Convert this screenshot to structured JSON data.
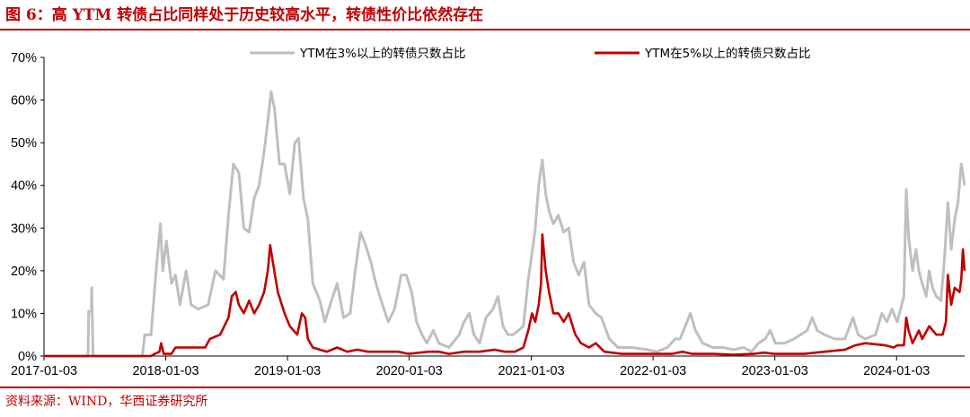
{
  "header": {
    "title": "图 6：高 YTM 转债占比同样处于历史较高水平，转债性价比依然存在"
  },
  "footer": {
    "source": "资料来源：WIND，华西证券研究所"
  },
  "colors": {
    "accent": "#c00000",
    "series_ytm3": "#bfbfbf",
    "series_ytm5": "#c00000"
  },
  "chart_data": {
    "type": "line",
    "xlabel": "",
    "ylabel": "",
    "ylim": [
      0,
      70
    ],
    "xlim": [
      "2017-01-03",
      "2024-07-25"
    ],
    "grid": false,
    "legend": "top",
    "y_ticks": [
      "0%",
      "10%",
      "20%",
      "30%",
      "40%",
      "50%",
      "60%",
      "70%"
    ],
    "x_ticks": [
      "2017-01-03",
      "2018-01-03",
      "2019-01-03",
      "2020-01-03",
      "2021-01-03",
      "2022-01-03",
      "2023-01-03",
      "2024-01-03"
    ],
    "series": [
      {
        "name": "YTM在3%以上的转债只数占比",
        "color": "#bfbfbf",
        "points": [
          [
            "2017-01-03",
            0
          ],
          [
            "2017-05-15",
            0
          ],
          [
            "2017-05-17",
            10.5
          ],
          [
            "2017-05-25",
            10.5
          ],
          [
            "2017-05-26",
            16
          ],
          [
            "2017-05-30",
            0
          ],
          [
            "2017-10-25",
            0
          ],
          [
            "2017-11-01",
            5
          ],
          [
            "2017-11-20",
            5
          ],
          [
            "2017-12-05",
            20
          ],
          [
            "2017-12-18",
            31
          ],
          [
            "2017-12-25",
            20
          ],
          [
            "2018-01-05",
            27
          ],
          [
            "2018-01-20",
            17
          ],
          [
            "2018-02-01",
            19
          ],
          [
            "2018-02-15",
            12
          ],
          [
            "2018-03-05",
            20
          ],
          [
            "2018-03-20",
            12
          ],
          [
            "2018-04-10",
            11
          ],
          [
            "2018-05-10",
            12
          ],
          [
            "2018-06-01",
            20
          ],
          [
            "2018-06-25",
            18
          ],
          [
            "2018-07-10",
            33
          ],
          [
            "2018-07-25",
            45
          ],
          [
            "2018-08-10",
            43
          ],
          [
            "2018-08-25",
            30
          ],
          [
            "2018-09-10",
            29
          ],
          [
            "2018-09-25",
            37
          ],
          [
            "2018-10-10",
            40
          ],
          [
            "2018-10-25",
            48
          ],
          [
            "2018-11-05",
            55
          ],
          [
            "2018-11-15",
            62
          ],
          [
            "2018-11-25",
            58
          ],
          [
            "2018-12-10",
            45
          ],
          [
            "2018-12-25",
            45
          ],
          [
            "2019-01-10",
            38
          ],
          [
            "2019-01-25",
            50
          ],
          [
            "2019-02-05",
            51
          ],
          [
            "2019-02-20",
            37
          ],
          [
            "2019-03-05",
            32
          ],
          [
            "2019-03-20",
            17
          ],
          [
            "2019-04-10",
            13
          ],
          [
            "2019-04-25",
            8
          ],
          [
            "2019-05-15",
            13
          ],
          [
            "2019-06-01",
            17
          ],
          [
            "2019-06-20",
            9
          ],
          [
            "2019-07-10",
            10
          ],
          [
            "2019-07-25",
            20
          ],
          [
            "2019-08-10",
            29
          ],
          [
            "2019-08-25",
            26
          ],
          [
            "2019-09-10",
            22
          ],
          [
            "2019-09-25",
            17
          ],
          [
            "2019-10-15",
            12
          ],
          [
            "2019-11-01",
            8
          ],
          [
            "2019-11-20",
            11
          ],
          [
            "2019-12-10",
            19
          ],
          [
            "2019-12-25",
            19
          ],
          [
            "2020-01-10",
            15
          ],
          [
            "2020-01-25",
            8
          ],
          [
            "2020-02-10",
            5
          ],
          [
            "2020-02-25",
            3
          ],
          [
            "2020-03-15",
            6
          ],
          [
            "2020-04-01",
            3
          ],
          [
            "2020-05-01",
            2
          ],
          [
            "2020-06-01",
            5
          ],
          [
            "2020-06-15",
            8
          ],
          [
            "2020-07-01",
            10
          ],
          [
            "2020-07-15",
            5
          ],
          [
            "2020-08-01",
            3
          ],
          [
            "2020-08-20",
            9
          ],
          [
            "2020-09-10",
            11
          ],
          [
            "2020-09-25",
            14
          ],
          [
            "2020-10-10",
            7
          ],
          [
            "2020-10-25",
            5
          ],
          [
            "2020-11-10",
            5
          ],
          [
            "2020-11-25",
            6
          ],
          [
            "2020-12-10",
            7
          ],
          [
            "2020-12-25",
            18
          ],
          [
            "2021-01-05",
            24
          ],
          [
            "2021-01-15",
            30
          ],
          [
            "2021-01-25",
            40
          ],
          [
            "2021-02-05",
            46
          ],
          [
            "2021-02-15",
            38
          ],
          [
            "2021-02-25",
            34
          ],
          [
            "2021-03-10",
            31
          ],
          [
            "2021-03-25",
            33
          ],
          [
            "2021-04-10",
            29
          ],
          [
            "2021-04-25",
            30
          ],
          [
            "2021-05-10",
            22
          ],
          [
            "2021-05-25",
            19
          ],
          [
            "2021-06-10",
            22
          ],
          [
            "2021-06-25",
            12
          ],
          [
            "2021-07-15",
            10
          ],
          [
            "2021-08-01",
            9
          ],
          [
            "2021-08-25",
            4
          ],
          [
            "2021-09-20",
            2
          ],
          [
            "2021-11-01",
            2
          ],
          [
            "2021-12-15",
            1.5
          ],
          [
            "2022-01-15",
            1
          ],
          [
            "2022-02-15",
            2
          ],
          [
            "2022-03-10",
            4
          ],
          [
            "2022-03-25",
            4
          ],
          [
            "2022-04-15",
            8
          ],
          [
            "2022-04-25",
            10
          ],
          [
            "2022-05-10",
            6
          ],
          [
            "2022-06-01",
            3
          ],
          [
            "2022-07-01",
            2
          ],
          [
            "2022-08-01",
            2
          ],
          [
            "2022-09-01",
            1.5
          ],
          [
            "2022-10-01",
            2
          ],
          [
            "2022-10-25",
            1
          ],
          [
            "2022-11-15",
            3
          ],
          [
            "2022-12-05",
            4
          ],
          [
            "2022-12-20",
            6
          ],
          [
            "2023-01-05",
            3
          ],
          [
            "2023-02-01",
            3
          ],
          [
            "2023-03-01",
            4
          ],
          [
            "2023-04-10",
            6
          ],
          [
            "2023-04-25",
            9
          ],
          [
            "2023-05-10",
            6
          ],
          [
            "2023-06-01",
            5
          ],
          [
            "2023-07-01",
            4
          ],
          [
            "2023-08-01",
            4
          ],
          [
            "2023-08-25",
            9
          ],
          [
            "2023-09-10",
            5
          ],
          [
            "2023-10-01",
            4
          ],
          [
            "2023-11-01",
            5
          ],
          [
            "2023-11-20",
            10
          ],
          [
            "2023-12-05",
            8
          ],
          [
            "2023-12-20",
            11
          ],
          [
            "2024-01-05",
            8
          ],
          [
            "2024-01-15",
            11
          ],
          [
            "2024-01-25",
            14
          ],
          [
            "2024-02-01",
            39
          ],
          [
            "2024-02-08",
            28
          ],
          [
            "2024-02-20",
            20
          ],
          [
            "2024-03-01",
            25
          ],
          [
            "2024-03-10",
            20
          ],
          [
            "2024-03-20",
            17
          ],
          [
            "2024-04-01",
            14
          ],
          [
            "2024-04-10",
            20
          ],
          [
            "2024-04-20",
            16
          ],
          [
            "2024-05-01",
            14
          ],
          [
            "2024-05-15",
            13
          ],
          [
            "2024-05-25",
            22
          ],
          [
            "2024-06-05",
            36
          ],
          [
            "2024-06-15",
            25
          ],
          [
            "2024-06-25",
            32
          ],
          [
            "2024-07-05",
            36
          ],
          [
            "2024-07-15",
            45
          ],
          [
            "2024-07-25",
            40
          ]
        ]
      },
      {
        "name": "YTM在5%以上的转债只数占比",
        "color": "#c00000",
        "points": [
          [
            "2017-01-03",
            0
          ],
          [
            "2017-11-20",
            0
          ],
          [
            "2017-12-01",
            0.5
          ],
          [
            "2017-12-15",
            1
          ],
          [
            "2017-12-20",
            3
          ],
          [
            "2017-12-28",
            0.5
          ],
          [
            "2018-01-20",
            0.5
          ],
          [
            "2018-02-01",
            2
          ],
          [
            "2018-05-01",
            2
          ],
          [
            "2018-05-15",
            4
          ],
          [
            "2018-06-15",
            5
          ],
          [
            "2018-07-10",
            9
          ],
          [
            "2018-07-20",
            14
          ],
          [
            "2018-08-01",
            15
          ],
          [
            "2018-08-10",
            12
          ],
          [
            "2018-08-25",
            10
          ],
          [
            "2018-09-10",
            13
          ],
          [
            "2018-09-25",
            10
          ],
          [
            "2018-10-10",
            12
          ],
          [
            "2018-10-25",
            15
          ],
          [
            "2018-11-05",
            20
          ],
          [
            "2018-11-12",
            26
          ],
          [
            "2018-11-20",
            22
          ],
          [
            "2018-12-05",
            15
          ],
          [
            "2018-12-25",
            10
          ],
          [
            "2019-01-10",
            7
          ],
          [
            "2019-02-01",
            5
          ],
          [
            "2019-02-15",
            10
          ],
          [
            "2019-02-25",
            9
          ],
          [
            "2019-03-05",
            4
          ],
          [
            "2019-03-20",
            2
          ],
          [
            "2019-05-01",
            1
          ],
          [
            "2019-06-01",
            2
          ],
          [
            "2019-07-01",
            1
          ],
          [
            "2019-08-01",
            1.5
          ],
          [
            "2019-09-01",
            1
          ],
          [
            "2019-12-01",
            1
          ],
          [
            "2020-01-01",
            0.5
          ],
          [
            "2020-03-01",
            1
          ],
          [
            "2020-04-01",
            1
          ],
          [
            "2020-05-01",
            0.5
          ],
          [
            "2020-06-15",
            1
          ],
          [
            "2020-08-01",
            1
          ],
          [
            "2020-09-15",
            1.5
          ],
          [
            "2020-10-15",
            1
          ],
          [
            "2020-11-15",
            1
          ],
          [
            "2020-12-10",
            2
          ],
          [
            "2020-12-25",
            6
          ],
          [
            "2021-01-05",
            10
          ],
          [
            "2021-01-15",
            8
          ],
          [
            "2021-01-25",
            12
          ],
          [
            "2021-02-01",
            17
          ],
          [
            "2021-02-05",
            28.5
          ],
          [
            "2021-02-15",
            20
          ],
          [
            "2021-02-25",
            15
          ],
          [
            "2021-03-10",
            10
          ],
          [
            "2021-03-25",
            10
          ],
          [
            "2021-04-10",
            8
          ],
          [
            "2021-04-25",
            10
          ],
          [
            "2021-05-15",
            5
          ],
          [
            "2021-06-01",
            3
          ],
          [
            "2021-06-25",
            2
          ],
          [
            "2021-07-15",
            3
          ],
          [
            "2021-08-10",
            1
          ],
          [
            "2021-10-01",
            0.5
          ],
          [
            "2022-03-01",
            0.5
          ],
          [
            "2022-04-01",
            1
          ],
          [
            "2022-05-01",
            0.5
          ],
          [
            "2022-07-01",
            0.5
          ],
          [
            "2022-09-01",
            0.3
          ],
          [
            "2022-11-01",
            0.5
          ],
          [
            "2022-12-01",
            0.8
          ],
          [
            "2023-01-01",
            0.5
          ],
          [
            "2023-04-01",
            0.5
          ],
          [
            "2023-06-01",
            1
          ],
          [
            "2023-08-01",
            1.5
          ],
          [
            "2023-09-01",
            2.5
          ],
          [
            "2023-10-01",
            3
          ],
          [
            "2023-12-01",
            2.5
          ],
          [
            "2023-12-25",
            2
          ],
          [
            "2024-01-05",
            2.5
          ],
          [
            "2024-01-25",
            2.5
          ],
          [
            "2024-02-01",
            9
          ],
          [
            "2024-02-08",
            6
          ],
          [
            "2024-02-20",
            3
          ],
          [
            "2024-03-10",
            6
          ],
          [
            "2024-03-20",
            4
          ],
          [
            "2024-04-10",
            7
          ],
          [
            "2024-05-01",
            5
          ],
          [
            "2024-05-20",
            5
          ],
          [
            "2024-05-30",
            8
          ],
          [
            "2024-06-05",
            19
          ],
          [
            "2024-06-15",
            12
          ],
          [
            "2024-06-25",
            16
          ],
          [
            "2024-07-10",
            15
          ],
          [
            "2024-07-15",
            18
          ],
          [
            "2024-07-20",
            25
          ],
          [
            "2024-07-25",
            20
          ]
        ]
      }
    ]
  }
}
